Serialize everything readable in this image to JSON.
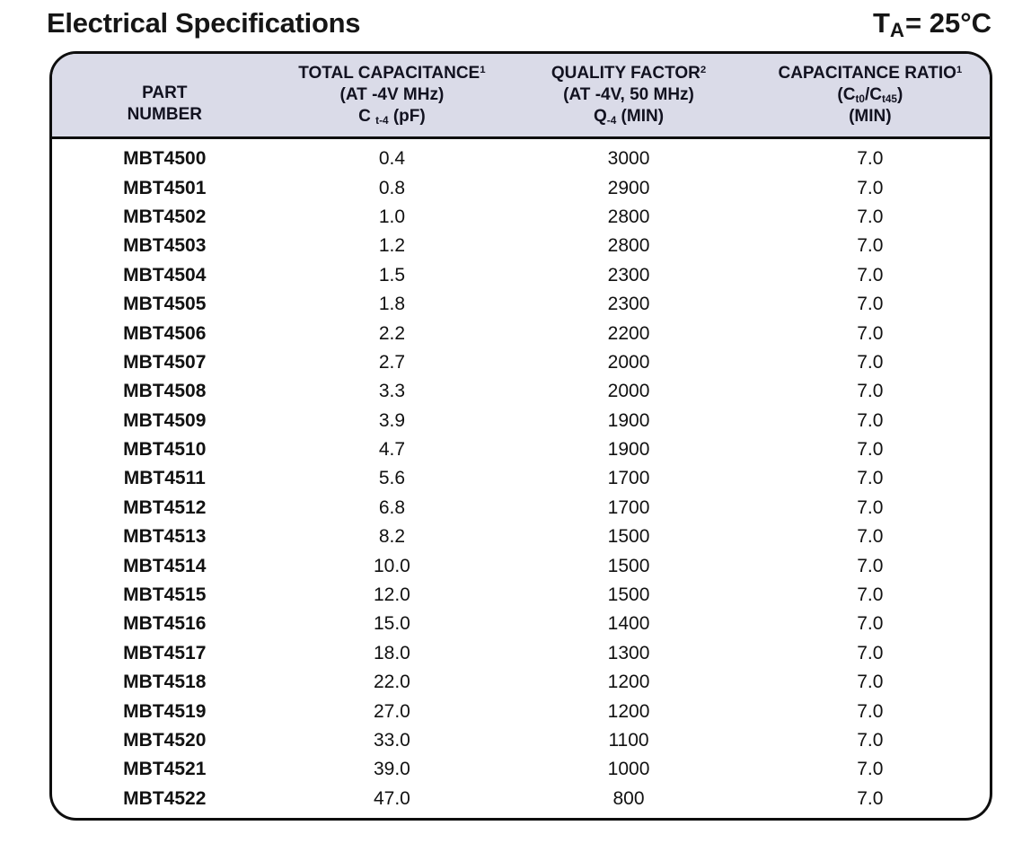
{
  "page": {
    "title": "Electrical Specifications",
    "temperature": {
      "symbol": "T",
      "subscript": "A",
      "value": "= 25°C"
    }
  },
  "colors": {
    "header_bg": "#dadbe8",
    "table_border": "#0e0e0e",
    "text": "#111111",
    "page_bg": "#ffffff"
  },
  "table": {
    "columns": [
      {
        "key": "part_number",
        "lines": [
          [
            {
              "t": "PART"
            }
          ],
          [
            {
              "t": "NUMBER"
            }
          ]
        ]
      },
      {
        "key": "total_capacitance",
        "lines": [
          [
            {
              "t": "TOTAL CAPACITANCE"
            },
            {
              "t": "1",
              "style": "sup"
            }
          ],
          [
            {
              "t": "(AT -4V MHz)"
            }
          ],
          [
            {
              "t": "C "
            },
            {
              "t": "t-4",
              "style": "sub"
            },
            {
              "t": " (pF)"
            }
          ]
        ]
      },
      {
        "key": "quality_factor",
        "lines": [
          [
            {
              "t": "QUALITY FACTOR"
            },
            {
              "t": "2",
              "style": "sup"
            }
          ],
          [
            {
              "t": "(AT -4V, 50 MHz)"
            }
          ],
          [
            {
              "t": "Q"
            },
            {
              "t": "-4",
              "style": "sub"
            },
            {
              "t": " (MIN)"
            }
          ]
        ]
      },
      {
        "key": "capacitance_ratio",
        "lines": [
          [
            {
              "t": "CAPACITANCE RATIO"
            },
            {
              "t": "1",
              "style": "sup"
            }
          ],
          [
            {
              "t": "(C"
            },
            {
              "t": "t0",
              "style": "sub"
            },
            {
              "t": "/C"
            },
            {
              "t": "t45",
              "style": "sub"
            },
            {
              "t": ")"
            }
          ],
          [
            {
              "t": "(MIN)"
            }
          ]
        ]
      }
    ],
    "rows": [
      [
        "MBT4500",
        "0.4",
        "3000",
        "7.0"
      ],
      [
        "MBT4501",
        "0.8",
        "2900",
        "7.0"
      ],
      [
        "MBT4502",
        "1.0",
        "2800",
        "7.0"
      ],
      [
        "MBT4503",
        "1.2",
        "2800",
        "7.0"
      ],
      [
        "MBT4504",
        "1.5",
        "2300",
        "7.0"
      ],
      [
        "MBT4505",
        "1.8",
        "2300",
        "7.0"
      ],
      [
        "MBT4506",
        "2.2",
        "2200",
        "7.0"
      ],
      [
        "MBT4507",
        "2.7",
        "2000",
        "7.0"
      ],
      [
        "MBT4508",
        "3.3",
        "2000",
        "7.0"
      ],
      [
        "MBT4509",
        "3.9",
        "1900",
        "7.0"
      ],
      [
        "MBT4510",
        "4.7",
        "1900",
        "7.0"
      ],
      [
        "MBT4511",
        "5.6",
        "1700",
        "7.0"
      ],
      [
        "MBT4512",
        "6.8",
        "1700",
        "7.0"
      ],
      [
        "MBT4513",
        "8.2",
        "1500",
        "7.0"
      ],
      [
        "MBT4514",
        "10.0",
        "1500",
        "7.0"
      ],
      [
        "MBT4515",
        "12.0",
        "1500",
        "7.0"
      ],
      [
        "MBT4516",
        "15.0",
        "1400",
        "7.0"
      ],
      [
        "MBT4517",
        "18.0",
        "1300",
        "7.0"
      ],
      [
        "MBT4518",
        "22.0",
        "1200",
        "7.0"
      ],
      [
        "MBT4519",
        "27.0",
        "1200",
        "7.0"
      ],
      [
        "MBT4520",
        "33.0",
        "1100",
        "7.0"
      ],
      [
        "MBT4521",
        "39.0",
        "1000",
        "7.0"
      ],
      [
        "MBT4522",
        "47.0",
        "800",
        "7.0"
      ]
    ]
  }
}
